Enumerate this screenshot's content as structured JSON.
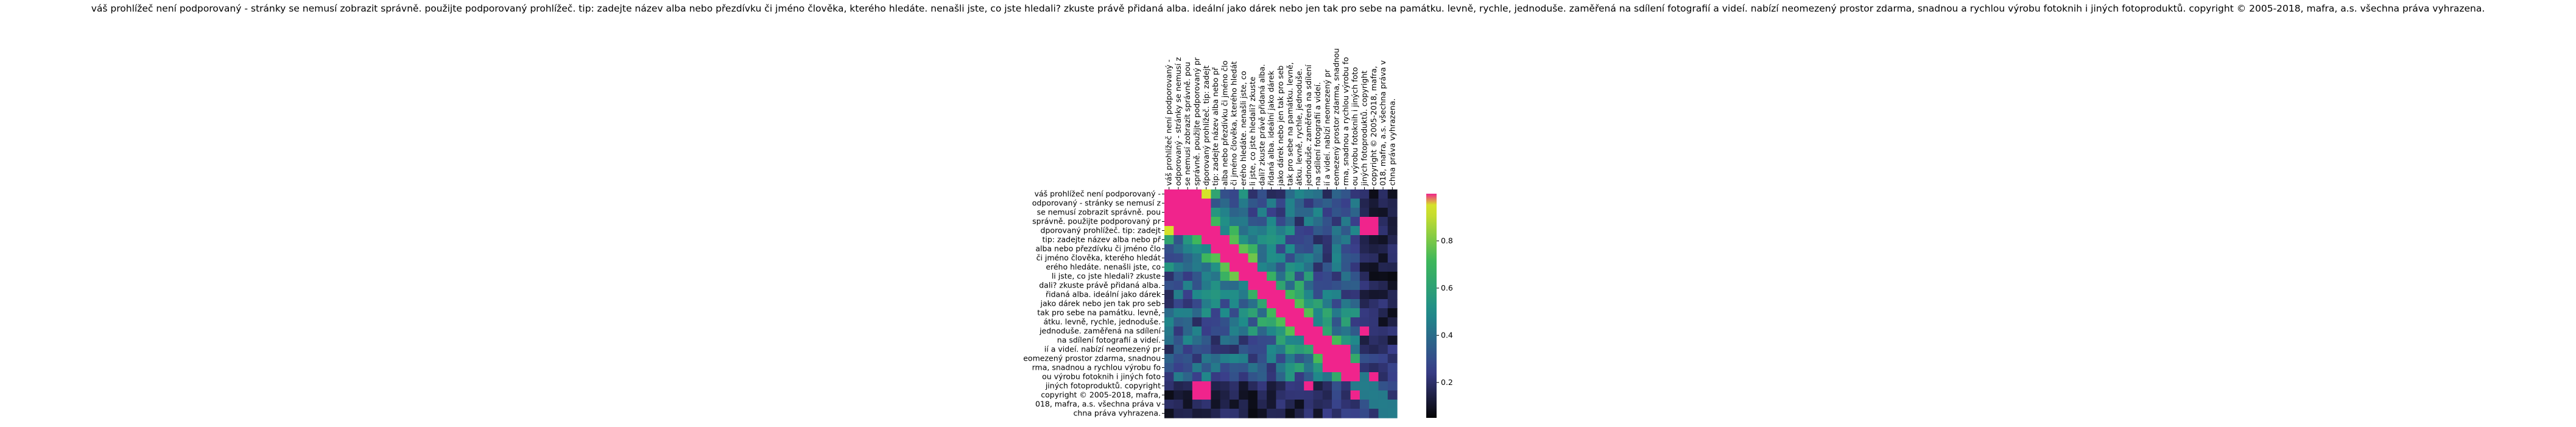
{
  "chart_data": {
    "type": "heatmap",
    "title": "váš prohlížeč není podporovaný - stránky se nemusí zobrazit správně. použijte podporovaný prohlížeč. tip: zadejte název alba nebo přezdívku či jméno člověka, kterého hledáte. nenašli jste, co jste hledali? zkuste právě přidaná alba. ideální jako dárek nebo jen tak pro sebe na památku. levně, rychle, jednoduše. zaměřená na sdílení fotografií a videí. nabízí neomezený prostor zdarma, snadnou a rychlou výrobu fotoknih i jiných fotoproduktů. copyright © 2005-2018, mafra, a.s. všechna práva vyhrazena.",
    "labels": [
      "váš prohlížeč není podporovaný -",
      "odporovaný - stránky se nemusí z",
      "se nemusí zobrazit správně. pou",
      "správně. použijte podporovaný pr",
      "dporovaný prohlížeč. tip: zadejt",
      "tip: zadejte název alba nebo př",
      "alba nebo přezdívku či jméno člo",
      "či jméno člověka, kterého hledát",
      "erého hledáte. nenašli jste, co",
      "li jste, co jste hledali? zkuste",
      "dali? zkuste právě přidaná alba.",
      "řidaná alba. ideální jako dárek",
      "jako dárek nebo jen tak pro seb",
      "tak pro sebe na památku. levně,",
      "átku. levně, rychle, jednoduše.",
      "jednoduše. zaměřená na sdílení",
      "na sdílení fotografií a videí.",
      "ií a videí. nabízí neomezený pr",
      "eomezený prostor zdarma, snadnou",
      "rma, snadnou a rychlou výrobu fo",
      "ou výrobu fotoknih i jiných foto",
      "jiných fotoproduktů. copyright",
      "copyright © 2005-2018, mafra,",
      "018, mafra, a.s. všechna práva v",
      "chna práva vyhrazena."
    ],
    "matrix_size": 25,
    "seed": 7,
    "colorbar": {
      "ticks": [
        0.2,
        0.4,
        0.6,
        0.8
      ],
      "tick_labels": [
        "0.2",
        "0.4",
        "0.6",
        "0.8"
      ],
      "range": [
        0.05,
        1.0
      ]
    },
    "colors": {
      "saturated": "#f0248c",
      "low": "#050505",
      "mid_low": "#3a3e8a",
      "mid": "#1f8c8a",
      "mid_high": "#3fb85a",
      "high": "#d6e12a"
    },
    "saturation_threshold": 0.97
  }
}
